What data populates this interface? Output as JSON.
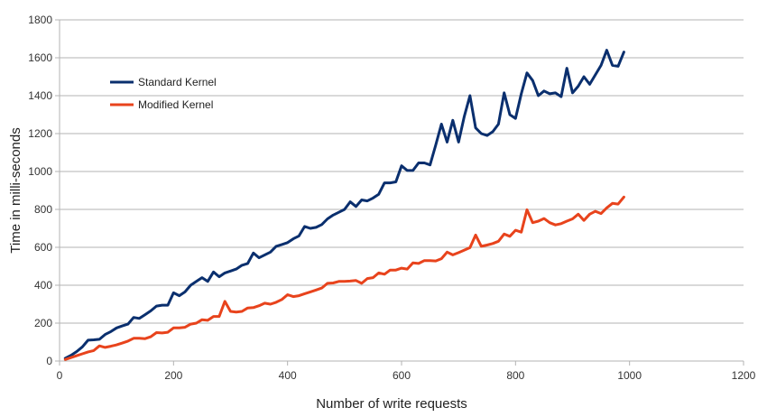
{
  "chart_data": {
    "type": "line",
    "title": "",
    "xlabel": "Number of write requests",
    "ylabel": "Time in milli-seconds",
    "xlim": [
      0,
      1200
    ],
    "ylim": [
      0,
      1800
    ],
    "x_ticks": [
      "0",
      "200",
      "400",
      "600",
      "800",
      "1000",
      "1200"
    ],
    "y_ticks": [
      "0",
      "200",
      "400",
      "600",
      "800",
      "1000",
      "1200",
      "1400",
      "1600",
      "1800"
    ],
    "grid": "horizontal",
    "legend_position": "top-left",
    "x": [
      10,
      20,
      30,
      40,
      50,
      60,
      70,
      80,
      90,
      100,
      110,
      120,
      130,
      140,
      150,
      160,
      170,
      180,
      190,
      200,
      210,
      220,
      230,
      240,
      250,
      260,
      270,
      280,
      290,
      300,
      310,
      320,
      330,
      340,
      350,
      360,
      370,
      380,
      390,
      400,
      410,
      420,
      430,
      440,
      450,
      460,
      470,
      480,
      490,
      500,
      510,
      520,
      530,
      540,
      550,
      560,
      570,
      580,
      590,
      600,
      610,
      620,
      630,
      640,
      650,
      660,
      670,
      680,
      690,
      700,
      710,
      720,
      730,
      740,
      750,
      760,
      770,
      780,
      790,
      800,
      810,
      820,
      830,
      840,
      850,
      860,
      870,
      880,
      890,
      900,
      910,
      920,
      930,
      940,
      950,
      960,
      970,
      980,
      990
    ],
    "series": [
      {
        "name": "Standard Kernel",
        "color": "#0a2f6e",
        "values": [
          15,
          30,
          50,
          75,
          110,
          112,
          115,
          140,
          155,
          175,
          185,
          195,
          230,
          225,
          245,
          265,
          290,
          295,
          295,
          360,
          345,
          365,
          400,
          420,
          440,
          420,
          470,
          445,
          465,
          475,
          485,
          505,
          515,
          570,
          545,
          560,
          575,
          605,
          615,
          625,
          645,
          660,
          710,
          700,
          705,
          720,
          750,
          770,
          785,
          800,
          840,
          815,
          850,
          845,
          860,
          880,
          940,
          940,
          945,
          1030,
          1005,
          1005,
          1045,
          1045,
          1035,
          1140,
          1250,
          1155,
          1270,
          1155,
          1290,
          1400,
          1230,
          1200,
          1190,
          1210,
          1250,
          1415,
          1300,
          1280,
          1410,
          1520,
          1480,
          1400,
          1425,
          1410,
          1415,
          1395,
          1545,
          1415,
          1450,
          1500,
          1460,
          1510,
          1560,
          1640,
          1560,
          1555,
          1630
        ]
      },
      {
        "name": "Modified Kernel",
        "color": "#e8431c",
        "values": [
          8,
          18,
          28,
          38,
          48,
          55,
          80,
          72,
          78,
          85,
          95,
          105,
          120,
          120,
          118,
          128,
          150,
          148,
          152,
          175,
          175,
          178,
          195,
          200,
          218,
          215,
          235,
          235,
          315,
          262,
          258,
          262,
          280,
          282,
          292,
          305,
          300,
          310,
          325,
          350,
          340,
          345,
          355,
          365,
          375,
          385,
          410,
          412,
          420,
          420,
          422,
          425,
          410,
          435,
          440,
          465,
          458,
          480,
          480,
          490,
          485,
          518,
          515,
          530,
          530,
          528,
          540,
          575,
          560,
          572,
          585,
          598,
          665,
          605,
          612,
          620,
          632,
          670,
          658,
          690,
          680,
          798,
          730,
          738,
          752,
          730,
          718,
          725,
          738,
          750,
          775,
          742,
          775,
          790,
          778,
          808,
          832,
          828,
          865
        ]
      }
    ]
  }
}
